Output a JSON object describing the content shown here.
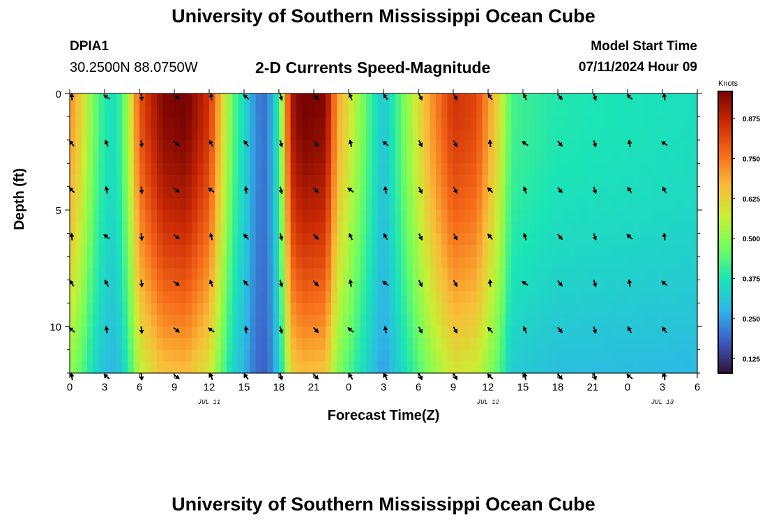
{
  "header": {
    "title": "University of Southern Mississippi Ocean Cube",
    "station_id": "DPIA1",
    "coordinates": "30.2500N  88.0750W",
    "plot_title": "2-D Currents Speed-Magnitude",
    "model_start_label": "Model Start Time",
    "model_start_value": "07/11/2024 Hour 09"
  },
  "footer": {
    "title": "University of Southern Mississippi Ocean Cube"
  },
  "chart_data": {
    "type": "heatmap",
    "title": "2-D Currents Speed-Magnitude",
    "xlabel": "Forecast Time(Z)",
    "ylabel": "Depth (ft)",
    "x_hours": [
      0,
      3,
      6,
      9,
      12,
      15,
      18,
      21,
      24,
      27,
      30,
      33,
      36,
      39,
      42,
      45,
      48,
      51,
      54
    ],
    "x_tick_labels": [
      "0",
      "3",
      "6",
      "9",
      "12",
      "15",
      "18",
      "21",
      "0",
      "3",
      "6",
      "9",
      "12",
      "15",
      "18",
      "21",
      "0",
      "3",
      "6"
    ],
    "date_labels": [
      {
        "text": "JUL 11",
        "hour": 12
      },
      {
        "text": "JUL 12",
        "hour": 36
      },
      {
        "text": "JUL 13",
        "hour": 51
      }
    ],
    "ylim": [
      0,
      12
    ],
    "y_tick_labels": [
      "0",
      "5",
      "10"
    ],
    "y_ticks": [
      0,
      5,
      10
    ],
    "depths_ft": [
      0,
      2,
      4,
      6,
      8,
      10,
      12
    ],
    "speed_profile_knots": [
      0.72,
      0.62,
      0.48,
      0.38,
      0.36,
      0.52,
      0.8,
      0.95,
      0.97,
      0.85,
      0.45,
      0.35,
      0.22,
      0.2,
      0.4,
      0.9,
      0.97,
      0.95,
      0.7,
      0.3,
      0.5,
      0.7,
      0.85,
      0.82,
      0.6,
      0.42,
      0.38,
      0.36
    ],
    "speed_profile_hours": [
      0,
      1,
      2,
      3,
      4,
      5,
      6,
      8,
      10,
      12,
      14,
      15,
      16,
      17,
      18,
      19,
      20,
      22,
      23,
      27,
      29,
      31,
      33,
      35,
      37,
      38,
      42,
      54
    ],
    "arrow_rows_ft": [
      0,
      2,
      4,
      6,
      8,
      10,
      12
    ],
    "arrow_hours": [
      0,
      3,
      6,
      9,
      12,
      15,
      18,
      21,
      24,
      27,
      30,
      33,
      36,
      39,
      42,
      45,
      48,
      51
    ],
    "colorbar": {
      "title": "Knots",
      "range": [
        0.08,
        0.96
      ],
      "tick_values": [
        0.125,
        0.25,
        0.375,
        0.5,
        0.625,
        0.75,
        0.875
      ],
      "tick_labels": [
        "0.125",
        "0.250",
        "0.375",
        "0.500",
        "0.625",
        "0.750",
        "0.875"
      ]
    },
    "colors": [
      "#30123b",
      "#3e5bc4",
      "#2fb5e8",
      "#1ae4b6",
      "#72fe5e",
      "#c8ef34",
      "#faba39",
      "#f66b19",
      "#cb2a04",
      "#7a0403"
    ]
  }
}
